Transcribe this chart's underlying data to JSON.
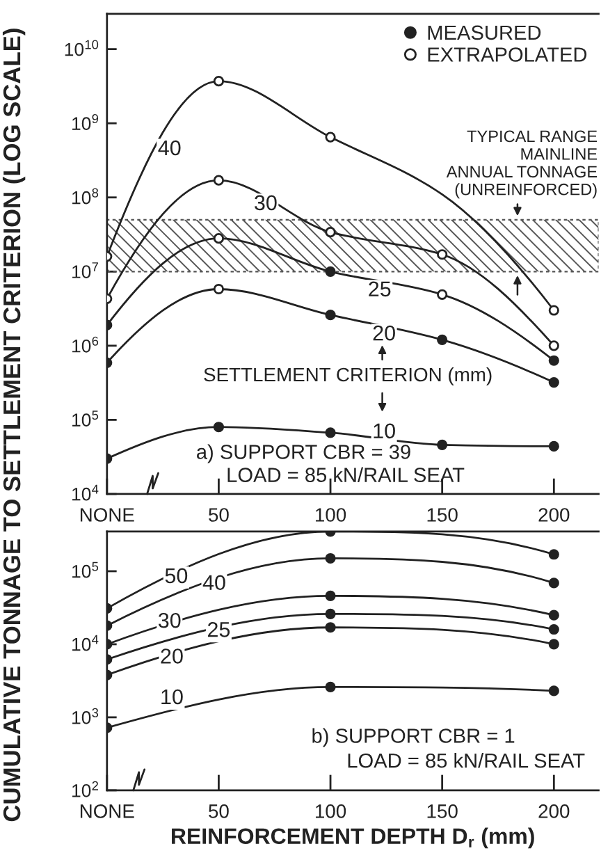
{
  "chart_data": [
    {
      "type": "line",
      "title": "a) SUPPORT CBR = 39",
      "subtitle": "LOAD = 85 kN/RAIL SEAT",
      "ylabel": "CUMULATIVE TONNAGE TO SETTLEMENT CRITERION (LOG SCALE)",
      "log": "y",
      "legend": "top right",
      "xlim": [
        0,
        220
      ],
      "xticks": [
        {
          "value": 0,
          "label": "NONE"
        },
        50,
        100,
        150,
        200
      ],
      "ylim": [
        10000,
        30000000000
      ],
      "yticks": [
        {
          "value": 10000,
          "label": "10$^{4}$"
        },
        {
          "value": 100000,
          "label": "10$^{5}$"
        },
        {
          "value": 1000000,
          "label": "10$^{6}$"
        },
        {
          "value": 10000000,
          "label": "10$^{7}$"
        },
        {
          "value": 100000000,
          "label": "10$^{8}$"
        },
        {
          "value": 1000000000,
          "label": "10$^{9}$"
        },
        {
          "value": 10000000000,
          "label": "10$^{10}$"
        }
      ],
      "series": [
        {
          "color": "#222222",
          "x": [
            0,
            50,
            100,
            150,
            200
          ],
          "values": [
            16000000,
            3700000000,
            650000000,
            110000000,
            3000000
          ]
        },
        {
          "color": "#222222",
          "x": [
            0,
            50,
            100,
            150,
            200
          ],
          "values": [
            4300000,
            170000000,
            34000000,
            17000000,
            1000000
          ]
        },
        {
          "color": "#222222",
          "x": [
            0,
            50,
            100,
            150,
            200
          ],
          "values": [
            1900000,
            28000000,
            10000000,
            4900000,
            630000
          ]
        },
        {
          "color": "#222222",
          "x": [
            0,
            50,
            100,
            150,
            200
          ],
          "values": [
            590000,
            5800000,
            2600000,
            1200000,
            320000
          ]
        },
        {
          "color": "#222222",
          "x": [
            0,
            50,
            100,
            150,
            200
          ],
          "values": [
            30000,
            80000,
            67000,
            46000,
            44000
          ]
        },
        {
          "type": "scatter",
          "name": "MEASURED",
          "color": "#222222",
          "marker": "circle",
          "x": [
            0,
            0,
            0,
            50,
            100,
            100,
            100,
            150,
            150,
            200,
            200,
            200
          ],
          "values": [
            1900000,
            590000,
            30000,
            80000,
            10000000,
            2600000,
            67000,
            1200000,
            46000,
            630000,
            320000,
            44000
          ]
        },
        {
          "type": "scatter",
          "name": "EXTRAPOLATED",
          "color": "#ffffff",
          "marker": "circle",
          "x": [
            0,
            0,
            50,
            50,
            50,
            50,
            100,
            100,
            150,
            150,
            200,
            200
          ],
          "values": [
            16000000,
            4300000,
            3700000000,
            170000000,
            28000000,
            5800000,
            650000000,
            34000000,
            17000000,
            4900000,
            3000000,
            1000000
          ]
        }
      ],
      "bands": [
        {
          "axis": "y",
          "from": 10000000,
          "to": 50000000,
          "label": "TYPICAL RANGE\nMAINLINE\nANNUAL TONNAGE\n(UNREINFORCED)",
          "color": "#555555"
        }
      ],
      "annotations": [
        {
          "text": "40",
          "x": 28,
          "y": 440000000
        },
        {
          "text": "30",
          "x": 71,
          "y": 80000000
        },
        {
          "text": "25",
          "x": 122,
          "y": 5500000
        },
        {
          "text": "20",
          "x": 124,
          "y": 1400000
        },
        {
          "text": "10",
          "x": 124,
          "y": 67000
        },
        "SETTLEMENT CRITERION (mm)"
      ]
    },
    {
      "type": "line",
      "title": "b) SUPPORT CBR = 1",
      "subtitle": "LOAD = 85 kN/RAIL SEAT",
      "xlabel": "REINFORCEMENT DEPTH D$_{r}$ (mm)",
      "log": "y",
      "xlim": [
        0,
        220
      ],
      "xticks": [
        {
          "value": 0,
          "label": "NONE"
        },
        50,
        100,
        150,
        200
      ],
      "ylim": [
        100,
        350000
      ],
      "yticks": [
        {
          "value": 100,
          "label": "10$^{2}$"
        },
        {
          "value": 1000,
          "label": "10$^{3}$"
        },
        {
          "value": 10000,
          "label": "10$^{4}$"
        },
        {
          "value": 100000,
          "label": "10$^{5}$"
        }
      ],
      "series": [
        {
          "color": "#222222",
          "x": [
            0,
            100,
            200
          ],
          "values": [
            31000,
            350000,
            170000
          ]
        },
        {
          "color": "#222222",
          "x": [
            0,
            100,
            200
          ],
          "values": [
            18000,
            150000,
            69000
          ]
        },
        {
          "color": "#222222",
          "x": [
            0,
            100,
            200
          ],
          "values": [
            10000,
            46000,
            25000
          ]
        },
        {
          "color": "#222222",
          "x": [
            0,
            100,
            200
          ],
          "values": [
            6200,
            26000,
            16000
          ]
        },
        {
          "color": "#222222",
          "x": [
            0,
            100,
            200
          ],
          "values": [
            3800,
            17000,
            10000
          ]
        },
        {
          "color": "#222222",
          "x": [
            0,
            100,
            200
          ],
          "values": [
            720,
            2600,
            2300
          ]
        },
        {
          "type": "scatter",
          "color": "#222222",
          "marker": "circle",
          "x": [
            0,
            0,
            0,
            0,
            0,
            0,
            100,
            100,
            100,
            100,
            100,
            100,
            200,
            200,
            200,
            200,
            200,
            200
          ],
          "values": [
            31000,
            18000,
            10000,
            6200,
            3800,
            720,
            350000,
            150000,
            46000,
            26000,
            17000,
            2600,
            170000,
            69000,
            25000,
            16000,
            10000,
            2300
          ]
        }
      ],
      "annotations": [
        {
          "text": "50",
          "x": 31,
          "y": 82000
        },
        {
          "text": "40",
          "x": 48,
          "y": 66000
        },
        {
          "text": "30",
          "x": 28,
          "y": 20000
        },
        {
          "text": "25",
          "x": 50,
          "y": 15000
        },
        {
          "text": "20",
          "x": 29,
          "y": 6500
        },
        {
          "text": "10",
          "x": 29,
          "y": 1800
        }
      ]
    }
  ]
}
